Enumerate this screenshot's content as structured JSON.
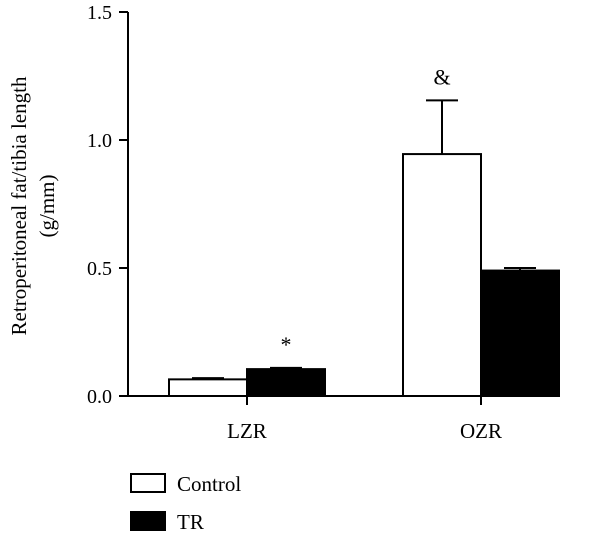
{
  "chart_data": {
    "type": "bar",
    "title": "",
    "ylabel_line1": "Retroperitoneal fat/tibia length",
    "ylabel_line2": "(g/mm)",
    "xlabel": "",
    "categories": [
      "LZR",
      "OZR"
    ],
    "series": [
      {
        "name": "Control",
        "values": [
          0.065,
          0.945
        ],
        "errors": [
          0.005,
          0.21
        ],
        "fill": "#ffffff"
      },
      {
        "name": "TR",
        "values": [
          0.105,
          0.49
        ],
        "errors": [
          0.005,
          0.01
        ],
        "fill": "#000000"
      }
    ],
    "annotations": [
      {
        "text": "*",
        "category": "LZR",
        "series": "TR"
      },
      {
        "text": "&",
        "category": "OZR",
        "series": "Control"
      }
    ],
    "ylim": [
      0,
      1.5
    ],
    "yticks": [
      0,
      0.5,
      1.0,
      1.5
    ],
    "ytick_labels": [
      "0.0",
      "0.5",
      "1.0",
      "1.5"
    ],
    "grid": false,
    "legend_position": "bottom-left"
  }
}
